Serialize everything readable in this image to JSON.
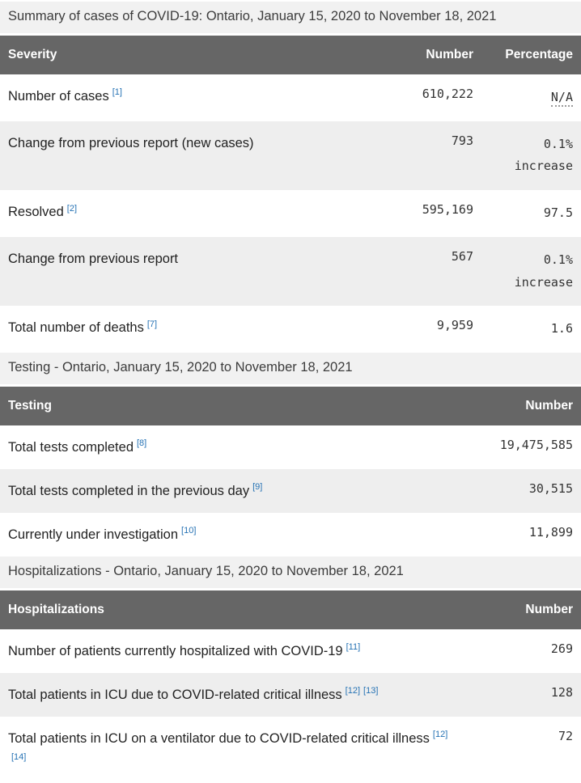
{
  "colors": {
    "header_bg": "#666666",
    "header_text": "#ffffff",
    "stripe_bg": "#eeeeee",
    "caption_bg": "#f1f1f1",
    "footnote_link": "#2572b4",
    "number_text": "#333333"
  },
  "tables": [
    {
      "caption": "Summary of cases of COVID-19: Ontario, January 15, 2020 to November 18, 2021",
      "columns": [
        "Severity",
        "Number",
        "Percentage"
      ],
      "rows": [
        {
          "label": "Number of cases",
          "footnotes": [
            "[1]"
          ],
          "number": "610,222",
          "percentage": "N/A",
          "percentage_is_abbr": true
        },
        {
          "label": "Change from previous report (new cases)",
          "footnotes": [],
          "number": "793",
          "percentage": "0.1%",
          "percentage_line2": "increase"
        },
        {
          "label": "Resolved",
          "footnotes": [
            "[2]"
          ],
          "number": "595,169",
          "percentage": "97.5"
        },
        {
          "label": "Change from previous report",
          "footnotes": [],
          "number": "567",
          "percentage": "0.1%",
          "percentage_line2": "increase"
        },
        {
          "label": "Total number of deaths",
          "footnotes": [
            "[7]"
          ],
          "number": "9,959",
          "percentage": "1.6"
        }
      ]
    },
    {
      "caption": "Testing - Ontario, January 15, 2020 to November 18, 2021",
      "columns": [
        "Testing",
        "Number"
      ],
      "rows": [
        {
          "label": "Total tests completed",
          "footnotes": [
            "[8]"
          ],
          "number": "19,475,585"
        },
        {
          "label": "Total tests completed in the previous day",
          "footnotes": [
            "[9]"
          ],
          "number": "30,515"
        },
        {
          "label": "Currently under investigation",
          "footnotes": [
            "[10]"
          ],
          "number": "11,899"
        }
      ]
    },
    {
      "caption": "Hospitalizations - Ontario, January 15, 2020 to November 18, 2021",
      "columns": [
        "Hospitalizations",
        "Number"
      ],
      "rows": [
        {
          "label": "Number of patients currently hospitalized with COVID-19",
          "footnotes": [
            "[11]"
          ],
          "number": "269"
        },
        {
          "label": "Total patients in ICU due to COVID-related critical illness",
          "footnotes": [
            "[12]",
            "[13]"
          ],
          "number": "128"
        },
        {
          "label": "Total patients in ICU on a ventilator due to COVID-related critical illness",
          "footnotes": [
            "[12]",
            "[14]"
          ],
          "number": "72"
        }
      ]
    }
  ]
}
